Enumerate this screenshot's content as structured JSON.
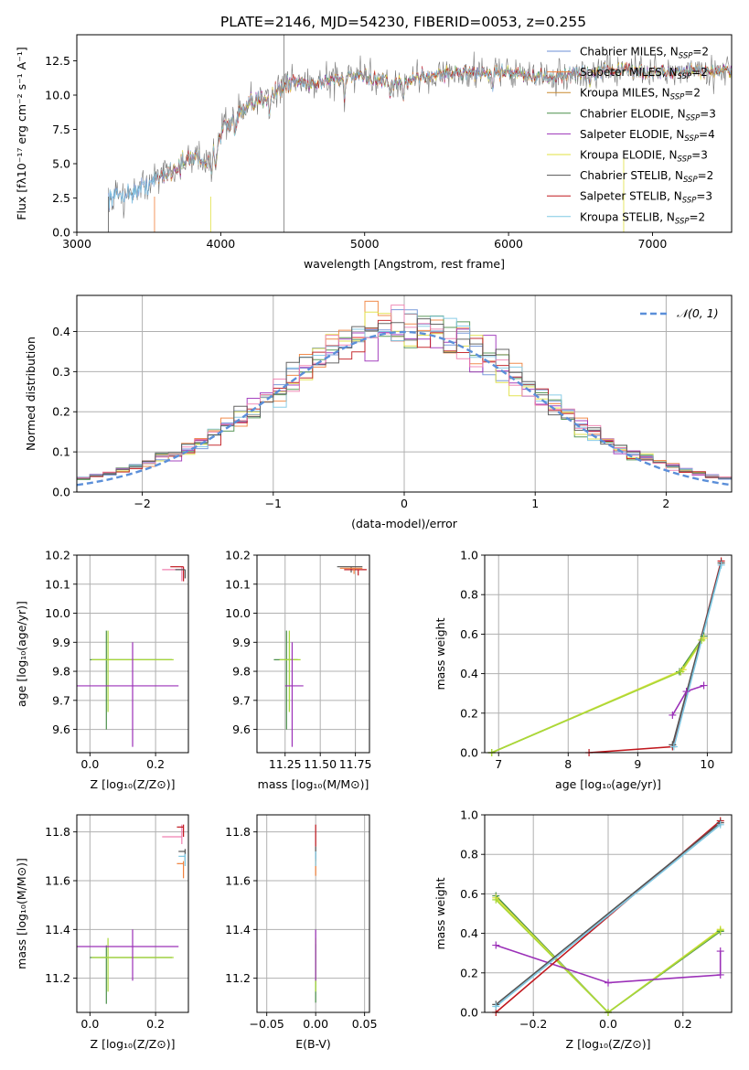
{
  "title": "PLATE=2146, MJD=54230, FIBERID=0053, z=0.255",
  "colors": {
    "Chabrier MILES": "#6b8fd6",
    "Salpeter MILES": "#f07f3a",
    "Kroupa MILES": "#c98a2e",
    "Chabrier ELODIE": "#4a8f4a",
    "Salpeter ELODIE": "#9b30b8",
    "Kroupa ELODIE": "#e0e040",
    "Chabrier STELIB": "#555555",
    "Salpeter STELIB": "#c0181e",
    "Kroupa STELIB": "#7ec8e3",
    "pink": "#f080b0",
    "lime": "#a8d838",
    "normal": "#5b8fd9",
    "grid": "#b0b0b0"
  },
  "chart_data": [
    {
      "id": "spectrum",
      "type": "line",
      "xlabel": "wavelength [Angstrom, rest frame]",
      "ylabel": "Flux [fλ10⁻¹⁷ erg cm⁻² s⁻¹ A⁻¹]",
      "xlim": [
        3000,
        7550
      ],
      "ylim": [
        0,
        14.4
      ],
      "xticks": [
        3000,
        4000,
        5000,
        6000,
        7000
      ],
      "yticks": [
        0.0,
        2.5,
        5.0,
        7.5,
        10.0,
        12.5
      ],
      "ytick_labels": [
        "0.0",
        "2.5",
        "5.0",
        "7.5",
        "10.0",
        "12.5"
      ],
      "legend_position": "right",
      "series": [
        {
          "name": "Chabrier MILES, N_SSP=2",
          "label": "Chabrier MILES",
          "nssp": "2"
        },
        {
          "name": "Salpeter MILES, N_SSP=2",
          "label": "Salpeter MILES",
          "nssp": "2"
        },
        {
          "name": "Kroupa MILES, N_SSP=2",
          "label": "Kroupa MILES",
          "nssp": "2"
        },
        {
          "name": "Chabrier ELODIE, N_SSP=3",
          "label": "Chabrier ELODIE",
          "nssp": "3"
        },
        {
          "name": "Salpeter ELODIE, N_SSP=4",
          "label": "Salpeter ELODIE",
          "nssp": "4"
        },
        {
          "name": "Kroupa ELODIE, N_SSP=3",
          "label": "Kroupa ELODIE",
          "nssp": "3"
        },
        {
          "name": "Chabrier STELIB, N_SSP=2",
          "label": "Chabrier STELIB",
          "nssp": "2"
        },
        {
          "name": "Salpeter STELIB, N_SSP=3",
          "label": "Salpeter STELIB",
          "nssp": "3"
        },
        {
          "name": "Kroupa STELIB, N_SSP=2",
          "label": "Kroupa STELIB",
          "nssp": "2"
        }
      ],
      "continuum": [
        [
          3220,
          2.6
        ],
        [
          3400,
          2.9
        ],
        [
          3560,
          3.9
        ],
        [
          3700,
          4.8
        ],
        [
          3820,
          5.6
        ],
        [
          3930,
          5.0
        ],
        [
          4000,
          7.4
        ],
        [
          4200,
          9.2
        ],
        [
          4400,
          10.4
        ],
        [
          4500,
          11.0
        ],
        [
          4650,
          10.8
        ],
        [
          4800,
          11.2
        ],
        [
          5000,
          11.3
        ],
        [
          5200,
          10.8
        ],
        [
          5400,
          11.4
        ],
        [
          5600,
          11.6
        ],
        [
          5800,
          11.6
        ],
        [
          6000,
          11.7
        ],
        [
          6200,
          11.2
        ],
        [
          6500,
          11.6
        ],
        [
          6800,
          11.9
        ],
        [
          7000,
          11.6
        ],
        [
          7300,
          11.8
        ],
        [
          7550,
          11.7
        ]
      ]
    },
    {
      "id": "residuals",
      "type": "line",
      "xlabel": "(data-model)/error",
      "ylabel": "Normed distribution",
      "xlim": [
        -2.5,
        2.5
      ],
      "ylim": [
        0,
        0.49
      ],
      "xticks": [
        -2,
        -1,
        0,
        1,
        2
      ],
      "xtick_labels": [
        "−2",
        "−1",
        "0",
        "1",
        "2"
      ],
      "yticks": [
        0.0,
        0.1,
        0.2,
        0.3,
        0.4
      ],
      "ytick_labels": [
        "0.0",
        "0.1",
        "0.2",
        "0.3",
        "0.4"
      ],
      "legend": "𝒩(0, 1)",
      "legend_position": "top-right",
      "histogram_bin_width": 0.1
    },
    {
      "id": "age_vs_Z",
      "type": "scatter",
      "xlabel": "Z [log₁₀(Z/Z⊙)]",
      "ylabel": "age  [log₁₀(age/yr)]",
      "xlim": [
        -0.04,
        0.3
      ],
      "ylim": [
        9.52,
        10.2
      ],
      "xticks": [
        0.0,
        0.2
      ],
      "xtick_labels": [
        "0.0",
        "0.2"
      ],
      "yticks": [
        9.6,
        9.7,
        9.8,
        9.9,
        10.0,
        10.1,
        10.2
      ],
      "ytick_labels": [
        "9.6",
        "9.7",
        "9.8",
        "9.9",
        "10.0",
        "10.1",
        "10.2"
      ],
      "points": [
        {
          "x": 0.05,
          "y": 9.84,
          "xerr": [
            0.05,
            0.2
          ],
          "yerr": [
            0.24,
            0.1
          ],
          "color": "#4a8f4a"
        },
        {
          "x": 0.055,
          "y": 9.84,
          "xerr": [
            0.05,
            0.2
          ],
          "yerr": [
            0.18,
            0.1
          ],
          "color": "#a8d838"
        },
        {
          "x": 0.13,
          "y": 9.75,
          "xerr": [
            0.17,
            0.14
          ],
          "yerr": [
            0.21,
            0.15
          ],
          "color": "#9b30b8"
        },
        {
          "x": 0.28,
          "y": 10.15,
          "xerr": [
            0.06,
            0.0
          ],
          "yerr": [
            0.04,
            0.01
          ],
          "color": "#f080b0"
        },
        {
          "x": 0.285,
          "y": 10.16,
          "xerr": [
            0.04,
            0.0
          ],
          "yerr": [
            0.05,
            0.0
          ],
          "color": "#c0181e"
        },
        {
          "x": 0.29,
          "y": 10.15,
          "xerr": [
            0.03,
            0.0
          ],
          "yerr": [
            0.03,
            0.0
          ],
          "color": "#555555"
        }
      ]
    },
    {
      "id": "age_vs_mass",
      "type": "scatter",
      "xlabel": "mass [log₁₀(M/M⊙)]",
      "xlim": [
        11.05,
        11.85
      ],
      "ylim": [
        9.52,
        10.2
      ],
      "xticks": [
        11.25,
        11.5,
        11.75
      ],
      "xtick_labels": [
        "11.25",
        "11.50",
        "11.75"
      ],
      "yticks": [
        9.6,
        9.7,
        9.8,
        9.9,
        10.0,
        10.1,
        10.2
      ],
      "ytick_labels": [
        "9.6",
        "9.7",
        "9.8",
        "9.9",
        "10.0",
        "10.1",
        "10.2"
      ],
      "points": [
        {
          "x": 11.26,
          "y": 9.84,
          "xerr": [
            0.09,
            0.08
          ],
          "yerr": [
            0.24,
            0.1
          ],
          "color": "#4a8f4a"
        },
        {
          "x": 11.28,
          "y": 9.84,
          "xerr": [
            0.07,
            0.08
          ],
          "yerr": [
            0.18,
            0.1
          ],
          "color": "#a8d838"
        },
        {
          "x": 11.3,
          "y": 9.75,
          "xerr": [
            0.05,
            0.08
          ],
          "yerr": [
            0.21,
            0.15
          ],
          "color": "#9b30b8"
        },
        {
          "x": 11.72,
          "y": 10.16,
          "xerr": [
            0.1,
            0.08
          ],
          "yerr": [
            0.02,
            0.0
          ],
          "color": "#555555"
        },
        {
          "x": 11.77,
          "y": 10.15,
          "xerr": [
            0.1,
            0.06
          ],
          "yerr": [
            0.02,
            0.0
          ],
          "color": "#c0181e"
        },
        {
          "x": 11.74,
          "y": 10.155,
          "xerr": [
            0.1,
            0.06
          ],
          "yerr": [
            0.02,
            0.0
          ],
          "color": "#f07f3a"
        }
      ]
    },
    {
      "id": "massweight_vs_age",
      "type": "line",
      "xlabel": "age  [log₁₀(age/yr)]",
      "ylabel": "mass weight",
      "xlim": [
        6.8,
        10.35
      ],
      "ylim": [
        0,
        1
      ],
      "xticks": [
        7,
        8,
        9,
        10
      ],
      "yticks": [
        0.0,
        0.2,
        0.4,
        0.6,
        0.8,
        1.0
      ],
      "ytick_labels": [
        "0.0",
        "0.2",
        "0.4",
        "0.6",
        "0.8",
        "1.0"
      ],
      "series": [
        {
          "color": "#4a8f4a",
          "points": [
            [
              6.9,
              0.0
            ],
            [
              9.6,
              0.41
            ],
            [
              9.95,
              0.59
            ]
          ]
        },
        {
          "color": "#e0e040",
          "points": [
            [
              6.9,
              0.0
            ],
            [
              9.65,
              0.42
            ],
            [
              9.95,
              0.58
            ]
          ]
        },
        {
          "color": "#a8d838",
          "points": [
            [
              6.9,
              0.0
            ],
            [
              9.62,
              0.41
            ],
            [
              9.92,
              0.57
            ]
          ]
        },
        {
          "color": "#9b30b8",
          "points": [
            [
              9.5,
              0.19
            ],
            [
              9.7,
              0.31
            ],
            [
              9.95,
              0.34
            ]
          ]
        },
        {
          "color": "#c0181e",
          "points": [
            [
              8.3,
              0.0
            ],
            [
              9.5,
              0.03
            ],
            [
              10.2,
              0.97
            ]
          ]
        },
        {
          "color": "#555555",
          "points": [
            [
              9.5,
              0.04
            ],
            [
              10.2,
              0.96
            ]
          ]
        },
        {
          "color": "#7ec8e3",
          "points": [
            [
              9.52,
              0.03
            ],
            [
              10.2,
              0.95
            ]
          ]
        }
      ]
    },
    {
      "id": "mass_vs_Z",
      "type": "scatter",
      "xlabel": "Z [log₁₀(Z/Z⊙)]",
      "ylabel": "mass [log₁₀(M/M⊙)]",
      "xlim": [
        -0.04,
        0.3
      ],
      "ylim": [
        11.06,
        11.87
      ],
      "xticks": [
        0.0,
        0.2
      ],
      "xtick_labels": [
        "0.0",
        "0.2"
      ],
      "yticks": [
        11.2,
        11.4,
        11.6,
        11.8
      ],
      "ytick_labels": [
        "11.2",
        "11.4",
        "11.6",
        "11.8"
      ],
      "points": [
        {
          "x": 0.05,
          "y": 11.285,
          "xerr": [
            0.05,
            0.2
          ],
          "yerr": [
            0.19,
            0.05
          ],
          "color": "#4a8f4a"
        },
        {
          "x": 0.055,
          "y": 11.285,
          "xerr": [
            0.05,
            0.2
          ],
          "yerr": [
            0.14,
            0.08
          ],
          "color": "#a8d838"
        },
        {
          "x": 0.13,
          "y": 11.33,
          "xerr": [
            0.17,
            0.14
          ],
          "yerr": [
            0.14,
            0.07
          ],
          "color": "#9b30b8"
        },
        {
          "x": 0.28,
          "y": 11.78,
          "xerr": [
            0.06,
            0.0
          ],
          "yerr": [
            0.03,
            0.05
          ],
          "color": "#f080b0"
        },
        {
          "x": 0.285,
          "y": 11.82,
          "xerr": [
            0.02,
            0.0
          ],
          "yerr": [
            0.04,
            0.01
          ],
          "color": "#c0181e"
        },
        {
          "x": 0.29,
          "y": 11.72,
          "xerr": [
            0.02,
            0.0
          ],
          "yerr": [
            0.04,
            0.01
          ],
          "color": "#555555"
        },
        {
          "x": 0.29,
          "y": 11.7,
          "xerr": [
            0.02,
            0.0
          ],
          "yerr": [
            0.04,
            0.01
          ],
          "color": "#7ec8e3"
        },
        {
          "x": 0.285,
          "y": 11.67,
          "xerr": [
            0.02,
            0.0
          ],
          "yerr": [
            0.06,
            0.01
          ],
          "color": "#f07f3a"
        }
      ]
    },
    {
      "id": "mass_vs_ebv",
      "type": "scatter",
      "xlabel": "E(B-V)",
      "xlim": [
        -0.06,
        0.055
      ],
      "ylim": [
        11.06,
        11.87
      ],
      "xticks": [
        -0.05,
        0.0,
        0.05
      ],
      "xtick_labels": [
        "−0.05",
        "0.00",
        "0.05"
      ],
      "yticks": [
        11.2,
        11.4,
        11.6,
        11.8
      ],
      "ytick_labels": [
        "11.2",
        "11.4",
        "11.6",
        "11.8"
      ],
      "points": [
        {
          "x": 0.0,
          "y": 11.28,
          "yerr": [
            0.18,
            0.06
          ],
          "color": "#4a8f4a"
        },
        {
          "x": 0.0,
          "y": 11.285,
          "yerr": [
            0.14,
            0.08
          ],
          "color": "#a8d838"
        },
        {
          "x": 0.0,
          "y": 11.33,
          "yerr": [
            0.14,
            0.07
          ],
          "color": "#9b30b8"
        },
        {
          "x": 0.0,
          "y": 11.78,
          "yerr": [
            0.04,
            0.05
          ],
          "color": "#c0181e"
        },
        {
          "x": 0.0,
          "y": 11.72,
          "yerr": [
            0.04,
            0.02
          ],
          "color": "#555555"
        },
        {
          "x": 0.0,
          "y": 11.67,
          "yerr": [
            0.05,
            0.02
          ],
          "color": "#f07f3a"
        },
        {
          "x": 0.0,
          "y": 11.7,
          "yerr": [
            0.04,
            0.02
          ],
          "color": "#7ec8e3"
        }
      ]
    },
    {
      "id": "massweight_vs_Z",
      "type": "line",
      "xlabel": "Z [log₁₀(Z/Z⊙)]",
      "ylabel": "mass weight",
      "xlim": [
        -0.33,
        0.33
      ],
      "ylim": [
        0,
        1
      ],
      "xticks": [
        -0.2,
        0.0,
        0.2
      ],
      "xtick_labels": [
        "−0.2",
        "0.0",
        "0.2"
      ],
      "yticks": [
        0.0,
        0.2,
        0.4,
        0.6,
        0.8,
        1.0
      ],
      "ytick_labels": [
        "0.0",
        "0.2",
        "0.4",
        "0.6",
        "0.8",
        "1.0"
      ],
      "series": [
        {
          "color": "#4a8f4a",
          "points": [
            [
              -0.3,
              0.59
            ],
            [
              0.0,
              0.0
            ],
            [
              0.3,
              0.41
            ]
          ]
        },
        {
          "color": "#e0e040",
          "points": [
            [
              -0.3,
              0.58
            ],
            [
              0.0,
              0.0
            ],
            [
              0.3,
              0.42
            ]
          ]
        },
        {
          "color": "#a8d838",
          "points": [
            [
              -0.3,
              0.57
            ],
            [
              0.0,
              0.0
            ],
            [
              0.3,
              0.415
            ]
          ]
        },
        {
          "color": "#9b30b8",
          "points": [
            [
              -0.3,
              0.34
            ],
            [
              0.0,
              0.15
            ],
            [
              0.3,
              0.19
            ],
            [
              0.3,
              0.31
            ]
          ]
        },
        {
          "color": "#c0181e",
          "points": [
            [
              -0.3,
              0.0
            ],
            [
              0.3,
              0.97
            ]
          ]
        },
        {
          "color": "#555555",
          "points": [
            [
              -0.3,
              0.04
            ],
            [
              0.3,
              0.96
            ]
          ]
        },
        {
          "color": "#7ec8e3",
          "points": [
            [
              -0.3,
              0.03
            ],
            [
              0.3,
              0.95
            ]
          ]
        }
      ]
    }
  ]
}
